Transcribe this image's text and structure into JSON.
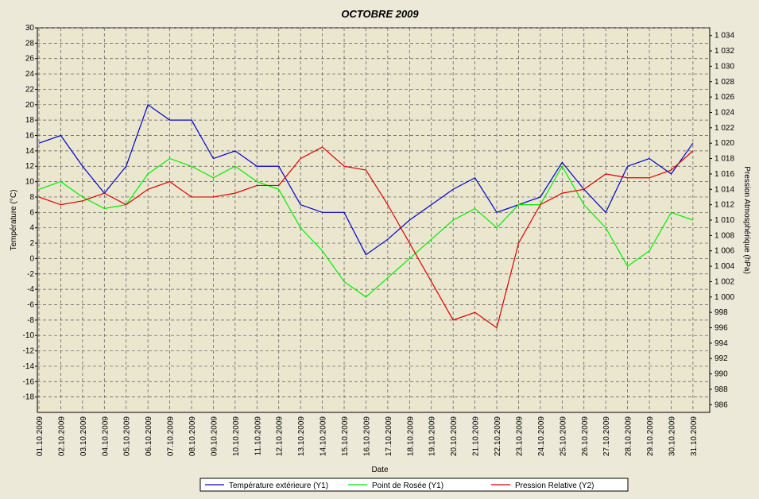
{
  "chart_data": {
    "type": "line",
    "title": "OCTOBRE   2009",
    "xlabel": "Date",
    "ylabel": "Température (°C)",
    "y2label": "Pression Atmosphérique (hPa)",
    "x": [
      "01.10.2009",
      "02.10.2009",
      "03.10.2009",
      "04.10.2009",
      "05.10.2009",
      "06.10.2009",
      "07.10.2009",
      "08.10.2009",
      "09.10.2009",
      "10.10.2009",
      "11.10.2009",
      "12.10.2009",
      "13.10.2009",
      "14.10.2009",
      "15.10.2009",
      "16.10.2009",
      "17.10.2009",
      "18.10.2009",
      "19.10.2009",
      "20.10.2009",
      "21.10.2009",
      "22.10.2009",
      "23.10.2009",
      "24.10.2009",
      "25.10.2009",
      "26.10.2009",
      "27.10.2009",
      "28.10.2009",
      "29.10.2009",
      "30.10.2009",
      "31.10.2009"
    ],
    "ylim": [
      -20,
      30
    ],
    "yticks": [
      30,
      28,
      26,
      24,
      22,
      20,
      18,
      16,
      14,
      12,
      10,
      8,
      6,
      4,
      2,
      0,
      -2,
      -4,
      -6,
      -8,
      -10,
      -12,
      -14,
      -16,
      -18
    ],
    "y2lim": [
      985,
      1035
    ],
    "y2ticks": [
      {
        "value": 1034,
        "label": "1 034"
      },
      {
        "value": 1032,
        "label": "1 032"
      },
      {
        "value": 1030,
        "label": "1 030"
      },
      {
        "value": 1028,
        "label": "1 028"
      },
      {
        "value": 1026,
        "label": "1 026"
      },
      {
        "value": 1024,
        "label": "1 024"
      },
      {
        "value": 1022,
        "label": "1 022"
      },
      {
        "value": 1020,
        "label": "1 020"
      },
      {
        "value": 1018,
        "label": "1 018"
      },
      {
        "value": 1016,
        "label": "1 016"
      },
      {
        "value": 1014,
        "label": "1 014"
      },
      {
        "value": 1012,
        "label": "1 012"
      },
      {
        "value": 1010,
        "label": "1 010"
      },
      {
        "value": 1008,
        "label": "1 008"
      },
      {
        "value": 1006,
        "label": "1 006"
      },
      {
        "value": 1004,
        "label": "1 004"
      },
      {
        "value": 1002,
        "label": "1 002"
      },
      {
        "value": 1000,
        "label": "1 000"
      },
      998,
      996,
      994,
      992,
      990,
      988,
      986
    ],
    "grid": true,
    "series": [
      {
        "name": "Température extérieure (Y1)",
        "color": "#0000cc",
        "values": [
          15,
          16,
          12,
          8.5,
          12,
          20,
          18,
          18,
          13,
          14,
          12,
          12,
          7,
          6,
          6,
          0.5,
          2.5,
          5,
          7,
          9,
          10.5,
          6,
          7,
          8,
          12.5,
          9,
          6,
          12,
          13,
          11,
          15
        ]
      },
      {
        "name": "Point de Rosée (Y1)",
        "color": "#00ee00",
        "values": [
          9,
          10,
          8,
          6.5,
          7,
          11,
          13,
          12,
          10.5,
          12,
          10,
          9,
          4,
          1,
          -3,
          -5,
          -2.5,
          0,
          2.5,
          5,
          6.5,
          4,
          7,
          7,
          12,
          7,
          4,
          -1,
          1,
          6,
          5
        ]
      },
      {
        "name": "Pression Relative (Y2)",
        "color": "#dd0000",
        "axis": "y2",
        "values": [
          1013,
          1012,
          1012.5,
          1013.5,
          1012,
          1014,
          1015,
          1013,
          1013,
          1013.5,
          1014.5,
          1014.5,
          1018,
          1019.5,
          1017,
          1016.5,
          1012,
          1007,
          1002,
          997,
          998,
          996,
          1007,
          1012,
          1013.5,
          1014,
          1016,
          1015.5,
          1015.5,
          1016.5,
          1019
        ]
      }
    ]
  }
}
